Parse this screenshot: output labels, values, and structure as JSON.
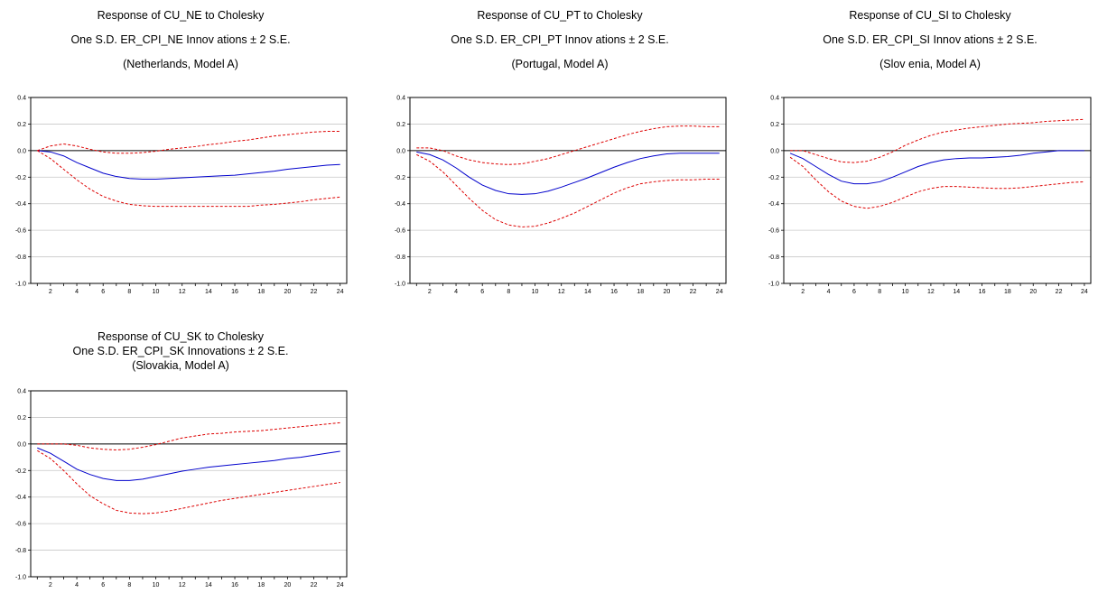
{
  "chart_data": [
    {
      "type": "line",
      "title_lines": [
        "Response of  CU_NE to Cholesky",
        "One S.D. ER_CPI_NE Innov ations ± 2 S.E.",
        "(Netherlands,  Model A)"
      ],
      "ylim": [
        -1.0,
        0.4
      ],
      "yticks": [
        "0.4",
        "0.2",
        "0.0",
        "-0.2",
        "-0.4",
        "-0.6",
        "-0.8",
        "-1.0"
      ],
      "xticks": [
        "2",
        "4",
        "6",
        "8",
        "10",
        "12",
        "14",
        "16",
        "18",
        "20",
        "22",
        "24"
      ],
      "x": [
        1,
        2,
        3,
        4,
        5,
        6,
        7,
        8,
        9,
        10,
        11,
        12,
        13,
        14,
        15,
        16,
        17,
        18,
        19,
        20,
        21,
        22,
        23,
        24
      ],
      "series": [
        {
          "role": "response",
          "color": "#0000cc",
          "style": "solid",
          "values": [
            0.0,
            -0.01,
            -0.04,
            -0.09,
            -0.13,
            -0.17,
            -0.195,
            -0.21,
            -0.215,
            -0.215,
            -0.21,
            -0.205,
            -0.2,
            -0.195,
            -0.19,
            -0.185,
            -0.175,
            -0.165,
            -0.155,
            -0.14,
            -0.13,
            -0.12,
            -0.11,
            -0.105
          ]
        },
        {
          "role": "upper",
          "color": "#dd0000",
          "style": "dashed",
          "values": [
            0.0,
            0.035,
            0.05,
            0.035,
            0.01,
            -0.01,
            -0.02,
            -0.02,
            -0.015,
            -0.005,
            0.01,
            0.02,
            0.03,
            0.045,
            0.055,
            0.07,
            0.08,
            0.095,
            0.11,
            0.12,
            0.13,
            0.14,
            0.145,
            0.145
          ]
        },
        {
          "role": "lower",
          "color": "#dd0000",
          "style": "dashed",
          "values": [
            0.0,
            -0.06,
            -0.14,
            -0.22,
            -0.29,
            -0.345,
            -0.38,
            -0.405,
            -0.415,
            -0.42,
            -0.42,
            -0.42,
            -0.42,
            -0.42,
            -0.42,
            -0.42,
            -0.42,
            -0.41,
            -0.405,
            -0.395,
            -0.385,
            -0.37,
            -0.36,
            -0.35
          ]
        }
      ]
    },
    {
      "type": "line",
      "title_lines": [
        "Response of  CU_PT to Cholesky",
        "One S.D. ER_CPI_PT Innov ations ± 2 S.E.",
        "(Portugal,  Model A)"
      ],
      "ylim": [
        -1.0,
        0.4
      ],
      "yticks": [
        "0.4",
        "0.2",
        "0.0",
        "-0.2",
        "-0.4",
        "-0.6",
        "-0.8",
        "-1.0"
      ],
      "xticks": [
        "2",
        "4",
        "6",
        "8",
        "10",
        "12",
        "14",
        "16",
        "18",
        "20",
        "22",
        "24"
      ],
      "x": [
        1,
        2,
        3,
        4,
        5,
        6,
        7,
        8,
        9,
        10,
        11,
        12,
        13,
        14,
        15,
        16,
        17,
        18,
        19,
        20,
        21,
        22,
        23,
        24
      ],
      "series": [
        {
          "role": "response",
          "color": "#0000cc",
          "style": "solid",
          "values": [
            -0.01,
            -0.03,
            -0.07,
            -0.13,
            -0.2,
            -0.26,
            -0.3,
            -0.325,
            -0.33,
            -0.325,
            -0.305,
            -0.275,
            -0.24,
            -0.205,
            -0.165,
            -0.125,
            -0.09,
            -0.06,
            -0.04,
            -0.025,
            -0.02,
            -0.02,
            -0.02,
            -0.02
          ]
        },
        {
          "role": "upper",
          "color": "#dd0000",
          "style": "dashed",
          "values": [
            0.02,
            0.02,
            0.0,
            -0.04,
            -0.07,
            -0.09,
            -0.1,
            -0.105,
            -0.1,
            -0.08,
            -0.06,
            -0.03,
            0.0,
            0.03,
            0.06,
            0.09,
            0.12,
            0.145,
            0.165,
            0.18,
            0.185,
            0.185,
            0.18,
            0.18
          ]
        },
        {
          "role": "lower",
          "color": "#dd0000",
          "style": "dashed",
          "values": [
            -0.03,
            -0.08,
            -0.16,
            -0.26,
            -0.36,
            -0.45,
            -0.52,
            -0.56,
            -0.575,
            -0.57,
            -0.545,
            -0.51,
            -0.47,
            -0.42,
            -0.37,
            -0.32,
            -0.28,
            -0.25,
            -0.235,
            -0.225,
            -0.22,
            -0.22,
            -0.215,
            -0.215
          ]
        }
      ]
    },
    {
      "type": "line",
      "title_lines": [
        "Response of  CU_SI to Cholesky",
        "One S.D. ER_CPI_SI Innov ations ± 2 S.E.",
        "(Slov enia,  Model A)"
      ],
      "ylim": [
        -1.0,
        0.4
      ],
      "yticks": [
        "0.4",
        "0.2",
        "0.0",
        "-0.2",
        "-0.4",
        "-0.6",
        "-0.8",
        "-1.0"
      ],
      "xticks": [
        "2",
        "4",
        "6",
        "8",
        "10",
        "12",
        "14",
        "16",
        "18",
        "20",
        "22",
        "24"
      ],
      "x": [
        1,
        2,
        3,
        4,
        5,
        6,
        7,
        8,
        9,
        10,
        11,
        12,
        13,
        14,
        15,
        16,
        17,
        18,
        19,
        20,
        21,
        22,
        23,
        24
      ],
      "series": [
        {
          "role": "response",
          "color": "#0000cc",
          "style": "solid",
          "values": [
            -0.02,
            -0.06,
            -0.12,
            -0.18,
            -0.23,
            -0.25,
            -0.25,
            -0.235,
            -0.2,
            -0.16,
            -0.12,
            -0.09,
            -0.07,
            -0.06,
            -0.055,
            -0.055,
            -0.05,
            -0.045,
            -0.035,
            -0.02,
            -0.01,
            0.0,
            0.0,
            0.0
          ]
        },
        {
          "role": "upper",
          "color": "#dd0000",
          "style": "dashed",
          "values": [
            0.0,
            0.0,
            -0.03,
            -0.06,
            -0.085,
            -0.09,
            -0.08,
            -0.05,
            -0.01,
            0.04,
            0.08,
            0.115,
            0.14,
            0.155,
            0.17,
            0.18,
            0.19,
            0.2,
            0.205,
            0.21,
            0.22,
            0.225,
            0.23,
            0.235
          ]
        },
        {
          "role": "lower",
          "color": "#dd0000",
          "style": "dashed",
          "values": [
            -0.05,
            -0.12,
            -0.22,
            -0.31,
            -0.38,
            -0.42,
            -0.435,
            -0.42,
            -0.39,
            -0.35,
            -0.31,
            -0.285,
            -0.27,
            -0.27,
            -0.275,
            -0.28,
            -0.285,
            -0.285,
            -0.28,
            -0.27,
            -0.26,
            -0.25,
            -0.24,
            -0.235
          ]
        }
      ]
    },
    {
      "type": "line",
      "title_lines": [
        "Response of CU_SK to Cholesky",
        "One S.D. ER_CPI_SK Innovations ± 2 S.E.",
        "(Slovakia, Model A)"
      ],
      "ylim": [
        -1.0,
        0.4
      ],
      "yticks": [
        "0.4",
        "0.2",
        "0.0",
        "-0.2",
        "-0.4",
        "-0.6",
        "-0.8",
        "-1.0"
      ],
      "xticks": [
        "2",
        "4",
        "6",
        "8",
        "10",
        "12",
        "14",
        "16",
        "18",
        "20",
        "22",
        "24"
      ],
      "x": [
        1,
        2,
        3,
        4,
        5,
        6,
        7,
        8,
        9,
        10,
        11,
        12,
        13,
        14,
        15,
        16,
        17,
        18,
        19,
        20,
        21,
        22,
        23,
        24
      ],
      "series": [
        {
          "role": "response",
          "color": "#0000cc",
          "style": "solid",
          "values": [
            -0.03,
            -0.07,
            -0.13,
            -0.19,
            -0.23,
            -0.26,
            -0.275,
            -0.275,
            -0.265,
            -0.245,
            -0.225,
            -0.205,
            -0.19,
            -0.175,
            -0.165,
            -0.155,
            -0.145,
            -0.135,
            -0.125,
            -0.11,
            -0.1,
            -0.085,
            -0.07,
            -0.055
          ]
        },
        {
          "role": "upper",
          "color": "#dd0000",
          "style": "dashed",
          "values": [
            0.0,
            0.0,
            0.0,
            -0.01,
            -0.03,
            -0.04,
            -0.045,
            -0.04,
            -0.025,
            -0.005,
            0.02,
            0.045,
            0.06,
            0.075,
            0.08,
            0.09,
            0.095,
            0.1,
            0.11,
            0.12,
            0.13,
            0.14,
            0.15,
            0.16
          ]
        },
        {
          "role": "lower",
          "color": "#dd0000",
          "style": "dashed",
          "values": [
            -0.05,
            -0.11,
            -0.2,
            -0.3,
            -0.39,
            -0.45,
            -0.5,
            -0.52,
            -0.525,
            -0.52,
            -0.505,
            -0.485,
            -0.465,
            -0.445,
            -0.425,
            -0.41,
            -0.395,
            -0.38,
            -0.365,
            -0.35,
            -0.335,
            -0.32,
            -0.305,
            -0.29
          ]
        }
      ]
    }
  ]
}
